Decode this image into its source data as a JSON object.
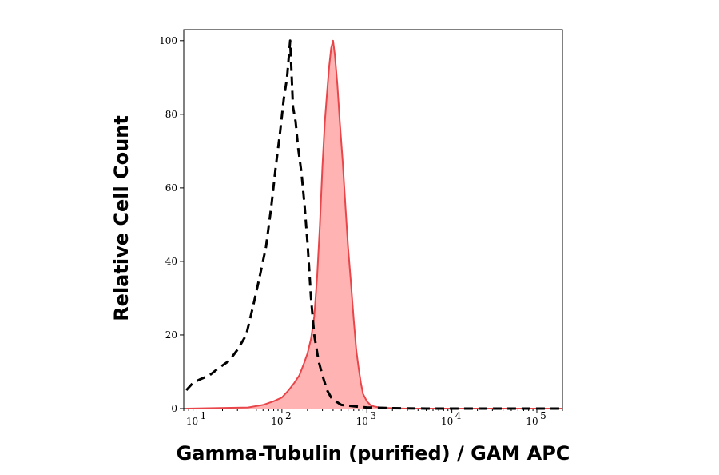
{
  "chart_data": {
    "type": "area",
    "title": "",
    "xlabel": "Gamma-Tubulin (purified) / GAM APC",
    "ylabel": "Relative Cell Count",
    "x_scale": "log",
    "xlim": [
      7,
      200000
    ],
    "ylim": [
      0,
      103
    ],
    "x_ticks": [
      {
        "value": 10,
        "base": "10",
        "exp": "1"
      },
      {
        "value": 100,
        "base": "10",
        "exp": "2"
      },
      {
        "value": 1000,
        "base": "10",
        "exp": "3"
      },
      {
        "value": 10000,
        "base": "10",
        "exp": "4"
      },
      {
        "value": 100000,
        "base": "10",
        "exp": "5"
      }
    ],
    "y_ticks": [
      "0",
      "20",
      "40",
      "60",
      "80",
      "100"
    ],
    "grid": false,
    "legend": "none",
    "series": [
      {
        "style": "dashed",
        "color": "#000000",
        "fill": "none",
        "x": [
          7.5,
          9,
          11,
          14,
          18,
          24,
          30,
          38,
          46,
          55,
          65,
          75,
          85,
          95,
          105,
          115,
          125,
          135,
          145,
          155,
          170,
          185,
          200,
          220,
          240,
          270,
          300,
          340,
          380,
          430,
          500,
          600,
          800,
          1000,
          2000,
          5000,
          20000,
          200000
        ],
        "y": [
          5,
          7,
          8,
          9,
          11,
          13,
          16,
          20,
          28,
          36,
          44,
          55,
          66,
          75,
          84,
          90,
          100,
          82,
          78,
          71,
          64,
          55,
          45,
          30,
          20,
          13,
          9,
          5,
          3,
          2,
          1,
          0.8,
          0.5,
          0.3,
          0.1,
          0,
          0,
          0
        ]
      },
      {
        "style": "solid",
        "color": "#e8464a",
        "fill": "#ffb3b3",
        "x": [
          7.5,
          40,
          60,
          80,
          100,
          120,
          140,
          160,
          180,
          200,
          220,
          240,
          260,
          280,
          300,
          320,
          340,
          360,
          380,
          400,
          420,
          450,
          480,
          520,
          560,
          600,
          650,
          700,
          750,
          800,
          850,
          900,
          1000,
          1100,
          1200,
          1400,
          1700,
          2000,
          3000,
          5000,
          20000,
          200000
        ],
        "y": [
          0,
          0.3,
          1,
          2,
          3,
          5,
          7,
          9,
          12,
          15,
          19,
          25,
          36,
          50,
          66,
          78,
          86,
          93,
          98,
          100,
          96,
          88,
          78,
          67,
          55,
          44,
          34,
          24,
          16,
          11,
          7,
          4,
          2,
          1,
          0.6,
          0.3,
          0.2,
          0.1,
          0,
          0,
          0,
          0
        ]
      }
    ]
  }
}
